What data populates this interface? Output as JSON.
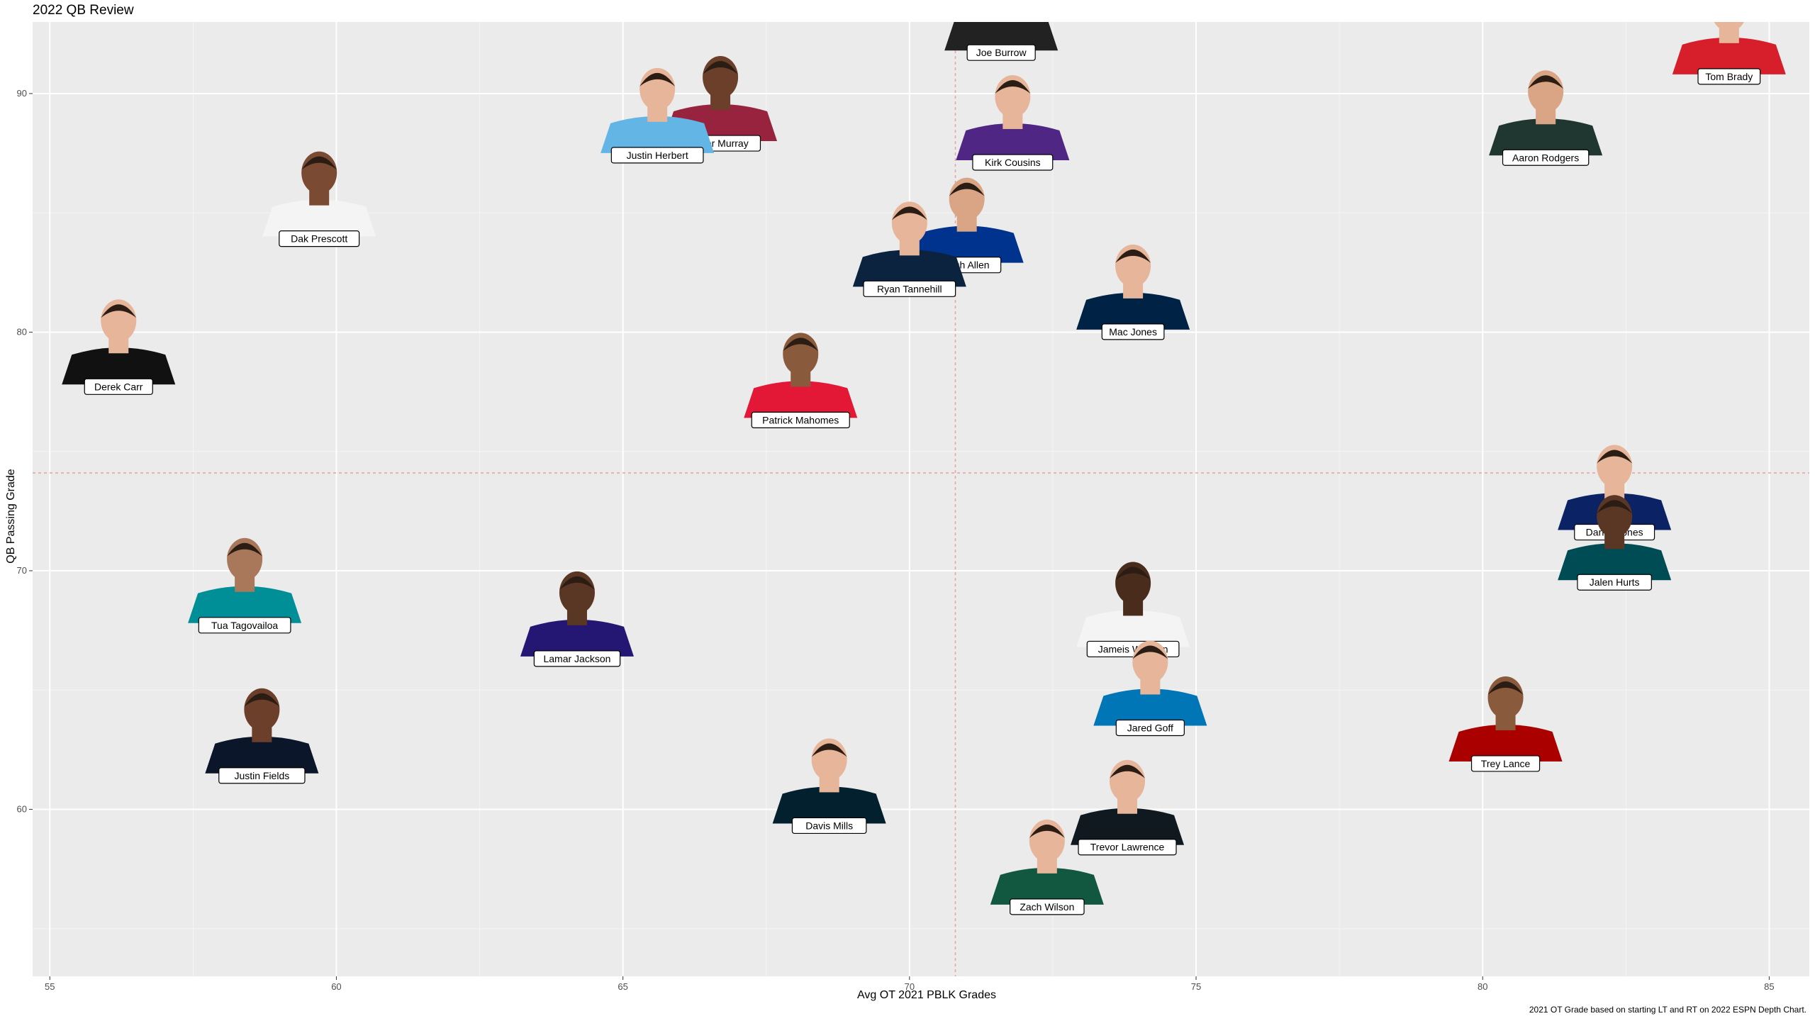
{
  "chart_data": {
    "type": "scatter",
    "title": "2022 QB Review",
    "xlabel": "Avg OT 2021 PBLK Grades",
    "ylabel": "QB Passing Grade",
    "caption": "2021 OT Grade based on starting LT and RT on 2022 ESPN Depth Chart.",
    "xlim": [
      54.7,
      85.7
    ],
    "ylim": [
      53,
      93
    ],
    "xticks": [
      55,
      60,
      65,
      70,
      75,
      80,
      85
    ],
    "yticks": [
      60,
      70,
      80,
      90
    ],
    "grid": true,
    "reference_lines": {
      "x": 70.8,
      "y": 74.1
    },
    "colors": {
      "panel": "#EBEBEB",
      "grid_major": "#FFFFFF",
      "grid_minor": "#F5F5F5",
      "reference": "#E8A0A0"
    },
    "points": [
      {
        "name": "Joe Burrow",
        "x": 71.6,
        "y": 92.4,
        "jersey": "#222222",
        "skin": "#e6b59a"
      },
      {
        "name": "Tom Brady",
        "x": 84.3,
        "y": 91.4,
        "jersey": "#d61f2b",
        "skin": "#e6b59a"
      },
      {
        "name": "Kyler Murray",
        "x": 66.7,
        "y": 88.6,
        "jersey": "#97233f",
        "skin": "#6b3f2a"
      },
      {
        "name": "Justin Herbert",
        "x": 65.6,
        "y": 88.1,
        "jersey": "#62b5e5",
        "skin": "#e6b59a"
      },
      {
        "name": "Kirk Cousins",
        "x": 71.8,
        "y": 87.8,
        "jersey": "#4f2683",
        "skin": "#e6b59a"
      },
      {
        "name": "Aaron Rodgers",
        "x": 81.1,
        "y": 88.0,
        "jersey": "#203731",
        "skin": "#d9a585"
      },
      {
        "name": "Dak Prescott",
        "x": 59.7,
        "y": 84.6,
        "jersey": "#f4f4f4",
        "skin": "#7a4a32"
      },
      {
        "name": "Josh Allen",
        "x": 71.0,
        "y": 83.5,
        "jersey": "#00338d",
        "skin": "#d9a585"
      },
      {
        "name": "Ryan Tannehill",
        "x": 70.0,
        "y": 82.5,
        "jersey": "#0c2340",
        "skin": "#e6b59a"
      },
      {
        "name": "Mac Jones",
        "x": 73.9,
        "y": 80.7,
        "jersey": "#002244",
        "skin": "#e6b59a"
      },
      {
        "name": "Derek Carr",
        "x": 56.2,
        "y": 78.4,
        "jersey": "#111111",
        "skin": "#e6b59a"
      },
      {
        "name": "Patrick Mahomes",
        "x": 68.1,
        "y": 77.0,
        "jersey": "#e31837",
        "skin": "#8a5a3c"
      },
      {
        "name": "Daniel Jones",
        "x": 82.3,
        "y": 72.3,
        "jersey": "#0b2265",
        "skin": "#e6b59a"
      },
      {
        "name": "Jalen Hurts",
        "x": 82.3,
        "y": 70.2,
        "jersey": "#004c54",
        "skin": "#5a3624"
      },
      {
        "name": "Tua Tagovailoa",
        "x": 58.4,
        "y": 68.4,
        "jersey": "#008e97",
        "skin": "#a9785a"
      },
      {
        "name": "Jameis Winston",
        "x": 73.9,
        "y": 67.4,
        "jersey": "#f4f4f4",
        "skin": "#4a2c1d"
      },
      {
        "name": "Lamar Jackson",
        "x": 64.2,
        "y": 67.0,
        "jersey": "#241773",
        "skin": "#5a3624"
      },
      {
        "name": "Jared Goff",
        "x": 74.2,
        "y": 64.1,
        "jersey": "#0076b6",
        "skin": "#e6b59a"
      },
      {
        "name": "Justin Fields",
        "x": 58.7,
        "y": 62.1,
        "jersey": "#0b162a",
        "skin": "#6b3f2a"
      },
      {
        "name": "Trey Lance",
        "x": 80.4,
        "y": 62.6,
        "jersey": "#aa0000",
        "skin": "#8a5a3c"
      },
      {
        "name": "Davis Mills",
        "x": 68.6,
        "y": 60.0,
        "jersey": "#03202f",
        "skin": "#e6b59a"
      },
      {
        "name": "Trevor Lawrence",
        "x": 73.8,
        "y": 59.1,
        "jersey": "#101820",
        "skin": "#e6b59a"
      },
      {
        "name": "Zach Wilson",
        "x": 72.4,
        "y": 56.6,
        "jersey": "#125740",
        "skin": "#e6b59a"
      }
    ]
  }
}
